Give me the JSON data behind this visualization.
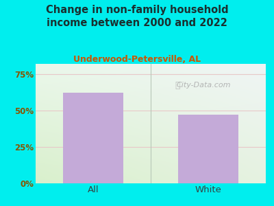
{
  "title": "Change in non-family household\nincome between 2000 and 2022",
  "subtitle": "Underwood-Petersville, AL",
  "categories": [
    "All",
    "White"
  ],
  "values": [
    62.0,
    47.0
  ],
  "bar_color": "#c4aad8",
  "title_color": "#1a3030",
  "subtitle_color": "#cc5500",
  "ytick_color": "#885500",
  "xtick_color": "#334444",
  "background_color": "#00eeee",
  "plot_bg_left": "#d8eec8",
  "plot_bg_right": "#eaf0ea",
  "plot_bg_top": "#e8eef0",
  "watermark": "City-Data.com",
  "watermark_color": "#aaaaaa",
  "grid_color": "#e8c8c8",
  "yticks": [
    0,
    25,
    50,
    75
  ],
  "ylim": [
    0,
    82
  ],
  "figsize": [
    4.0,
    3.0
  ],
  "dpi": 100
}
